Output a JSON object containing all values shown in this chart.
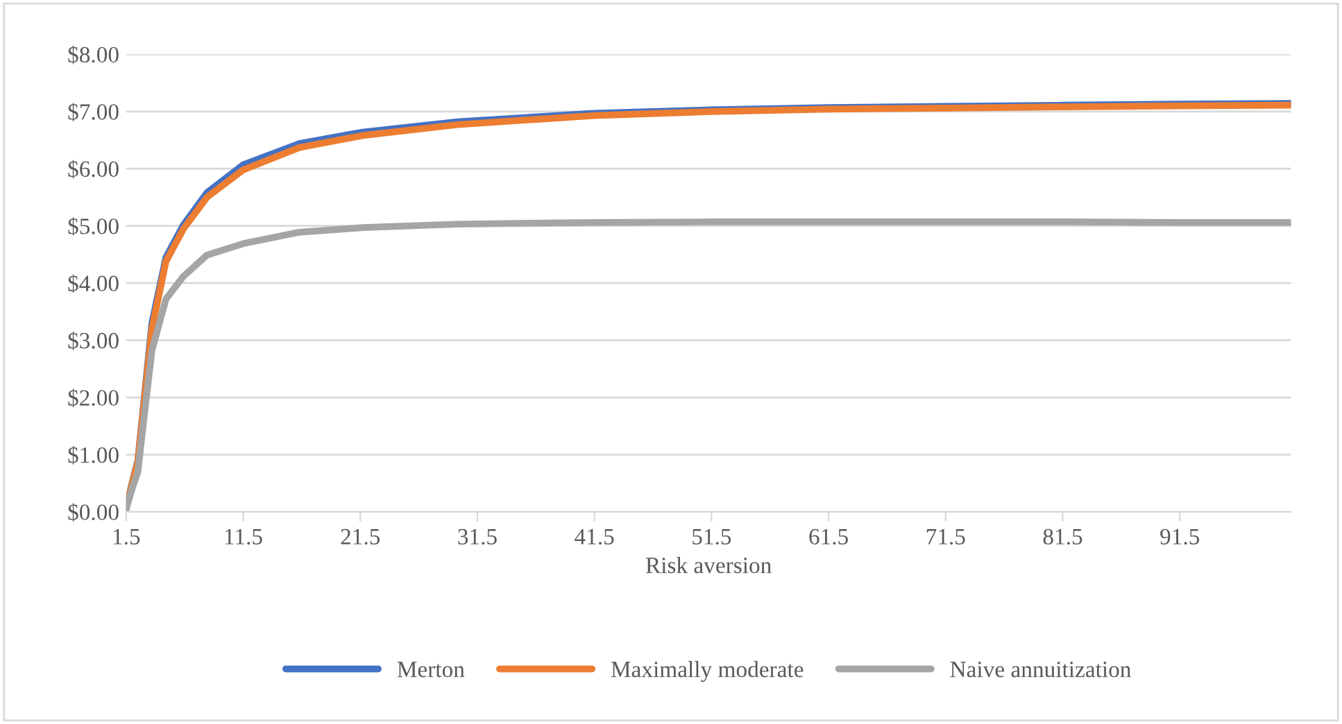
{
  "chart_data": {
    "type": "line",
    "xlabel": "Risk aversion",
    "x": [
      1.5,
      2.0,
      2.5,
      3.0,
      3.7,
      4.9,
      6.4,
      8.4,
      11.5,
      16.3,
      21.7,
      29.8,
      41.5,
      51.5,
      61.5,
      71.5,
      81.5,
      91.5,
      101
    ],
    "series": [
      {
        "name": "Merton",
        "color": "#4472c4",
        "values": [
          0.05,
          0.5,
          0.9,
          1.9,
          3.3,
          4.45,
          5.02,
          5.58,
          6.07,
          6.44,
          6.64,
          6.82,
          6.97,
          7.03,
          7.07,
          7.09,
          7.11,
          7.13,
          7.14
        ]
      },
      {
        "name": "Maximally moderate",
        "color": "#ed7d31",
        "values": [
          0.05,
          0.48,
          0.88,
          1.85,
          3.2,
          4.38,
          4.95,
          5.5,
          5.98,
          6.37,
          6.58,
          6.77,
          6.93,
          7.0,
          7.04,
          7.06,
          7.08,
          7.1,
          7.11
        ]
      },
      {
        "name": "Naive annuitization",
        "color": "#a5a5a5",
        "values": [
          0.05,
          0.4,
          0.7,
          1.6,
          2.82,
          3.72,
          4.12,
          4.49,
          4.69,
          4.89,
          4.97,
          5.03,
          5.06,
          5.07,
          5.07,
          5.07,
          5.07,
          5.06,
          5.06
        ]
      }
    ],
    "xlim": [
      1.5,
      101
    ],
    "xticks": [
      1.5,
      11.5,
      21.5,
      31.5,
      41.5,
      51.5,
      61.5,
      71.5,
      81.5,
      91.5
    ],
    "ylim": [
      0,
      8
    ],
    "yticks": [
      {
        "value": 0,
        "label": "$0.00"
      },
      {
        "value": 1,
        "label": "$1.00"
      },
      {
        "value": 2,
        "label": "$2.00"
      },
      {
        "value": 3,
        "label": "$3.00"
      },
      {
        "value": 4,
        "label": "$4.00"
      },
      {
        "value": 5,
        "label": "$5.00"
      },
      {
        "value": 6,
        "label": "$6.00"
      },
      {
        "value": 7,
        "label": "$7.00"
      },
      {
        "value": 8,
        "label": "$8.00"
      }
    ],
    "grid": "y",
    "legend": "bottom",
    "marker": "none",
    "line_style": "solid"
  }
}
